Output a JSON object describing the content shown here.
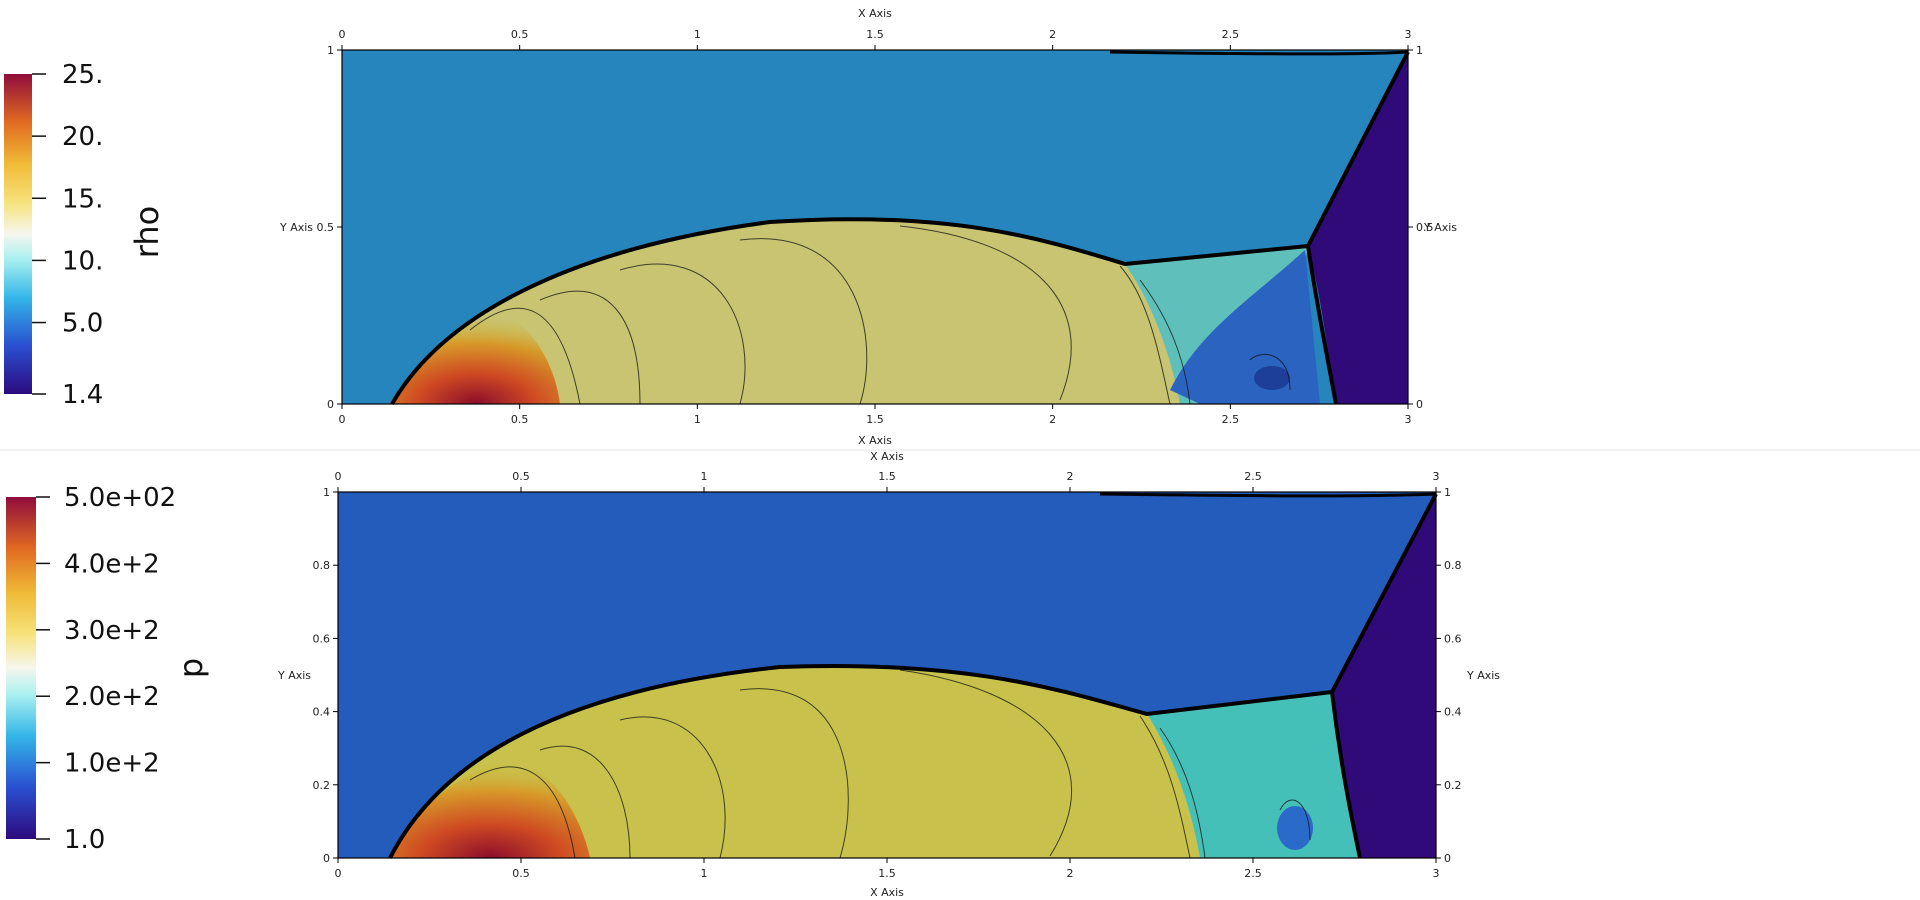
{
  "chart_data": [
    {
      "type": "heatmap",
      "variable": "rho",
      "colorbar": {
        "title": "rho",
        "ticks": [
          "25.",
          "20.",
          "15.",
          "10.",
          "5.0",
          "1.4"
        ]
      },
      "x_axis": {
        "label_top": "X Axis",
        "label_bottom": "X Axis",
        "ticks": [
          "0",
          "0.5",
          "1",
          "1.5",
          "2",
          "2.5",
          "3"
        ],
        "range": [
          0,
          3
        ]
      },
      "y_axis": {
        "label_left": "Y Axis",
        "label_right": "Y Axis",
        "ticks": [
          "0",
          "0.5",
          "1"
        ],
        "range": [
          0,
          1
        ]
      },
      "colors": {
        "ambient": "#2785bd",
        "post_shock": "#2f0a78",
        "shocked_layer": "#c8c472",
        "intermediate": "#5fc0bb",
        "pocket": "#2b63c0"
      }
    },
    {
      "type": "heatmap",
      "variable": "p",
      "colorbar": {
        "title": "p",
        "ticks": [
          "5.0e+02",
          "4.0e+2",
          "3.0e+2",
          "2.0e+2",
          "1.0e+2",
          "1.0"
        ]
      },
      "x_axis": {
        "label_top": "X Axis",
        "label_bottom": "X Axis",
        "ticks": [
          "0",
          "0.5",
          "1",
          "1.5",
          "2",
          "2.5",
          "3"
        ],
        "range": [
          0,
          3
        ]
      },
      "y_axis": {
        "label_left": "Y Axis",
        "label_right": "Y Axis",
        "ticks": [
          "0",
          "0.2",
          "0.4",
          "0.6",
          "0.8",
          "1"
        ],
        "range": [
          0,
          1
        ]
      },
      "colors": {
        "ambient": "#245cbc",
        "post_shock": "#2f0a78",
        "shocked_layer": "#c8c24c",
        "intermediate": "#45c0b8",
        "pocket": "#2a6ac8"
      }
    }
  ]
}
